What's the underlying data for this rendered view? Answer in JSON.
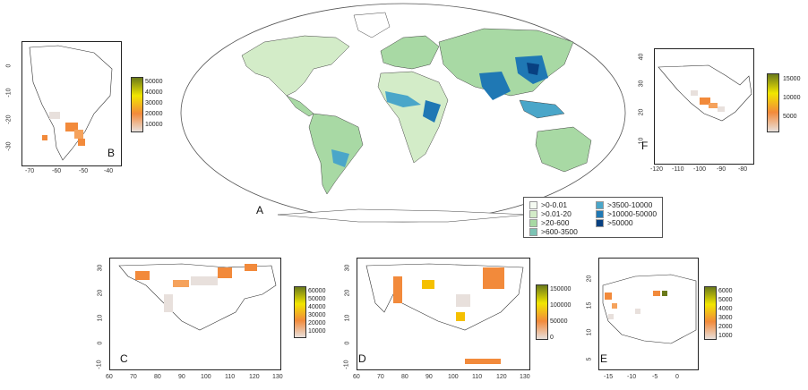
{
  "panels": {
    "A": {
      "letter": "A",
      "legend": [
        {
          "label": ">0-0.01",
          "color": "#f4faf1"
        },
        {
          "label": ">0.01-20",
          "color": "#d3ecc8"
        },
        {
          "label": ">20-600",
          "color": "#a8d9a4"
        },
        {
          "label": ">600-3500",
          "color": "#7cc3b4"
        },
        {
          "label": ">3500-10000",
          "color": "#4aa6c9"
        },
        {
          "label": ">10000-50000",
          "color": "#1f78b4"
        },
        {
          "label": ">50000",
          "color": "#084081"
        }
      ]
    },
    "B": {
      "letter": "B",
      "x_ticks": [
        "-70",
        "-60",
        "-50",
        "-40"
      ],
      "y_ticks": [
        "0",
        "-10",
        "-20",
        "-30"
      ],
      "colorbar_ticks": [
        "50000",
        "40000",
        "30000",
        "20000",
        "10000"
      ]
    },
    "F": {
      "letter": "F",
      "x_ticks": [
        "-120",
        "-110",
        "-100",
        "-90",
        "-80"
      ],
      "y_ticks": [
        "40",
        "30",
        "20",
        "10"
      ],
      "colorbar_ticks": [
        "15000",
        "10000",
        "5000"
      ]
    },
    "C": {
      "letter": "C",
      "x_ticks": [
        "60",
        "70",
        "80",
        "90",
        "100",
        "110",
        "120",
        "130"
      ],
      "y_ticks": [
        "30",
        "20",
        "10",
        "0",
        "-10"
      ],
      "colorbar_ticks": [
        "60000",
        "50000",
        "40000",
        "30000",
        "20000",
        "10000"
      ]
    },
    "D": {
      "letter": "D",
      "x_ticks": [
        "60",
        "70",
        "80",
        "90",
        "100",
        "110",
        "120",
        "130"
      ],
      "y_ticks": [
        "30",
        "20",
        "10",
        "0",
        "-10"
      ],
      "colorbar_ticks": [
        "150000",
        "100000",
        "50000",
        "0"
      ]
    },
    "E": {
      "letter": "E",
      "x_ticks": [
        "-15",
        "-10",
        "-5",
        "0"
      ],
      "y_ticks": [
        "20",
        "15",
        "10",
        "5"
      ],
      "colorbar_ticks": [
        "6000",
        "5000",
        "4000",
        "3000",
        "2000",
        "1000"
      ]
    }
  },
  "colors": {
    "heat_low": "#e8e0dc",
    "heat_mid": "#f28a3b",
    "heat_high": "#f2e600",
    "heat_top": "#6b7a1a",
    "land": "#ffffff",
    "border": "#333333"
  }
}
